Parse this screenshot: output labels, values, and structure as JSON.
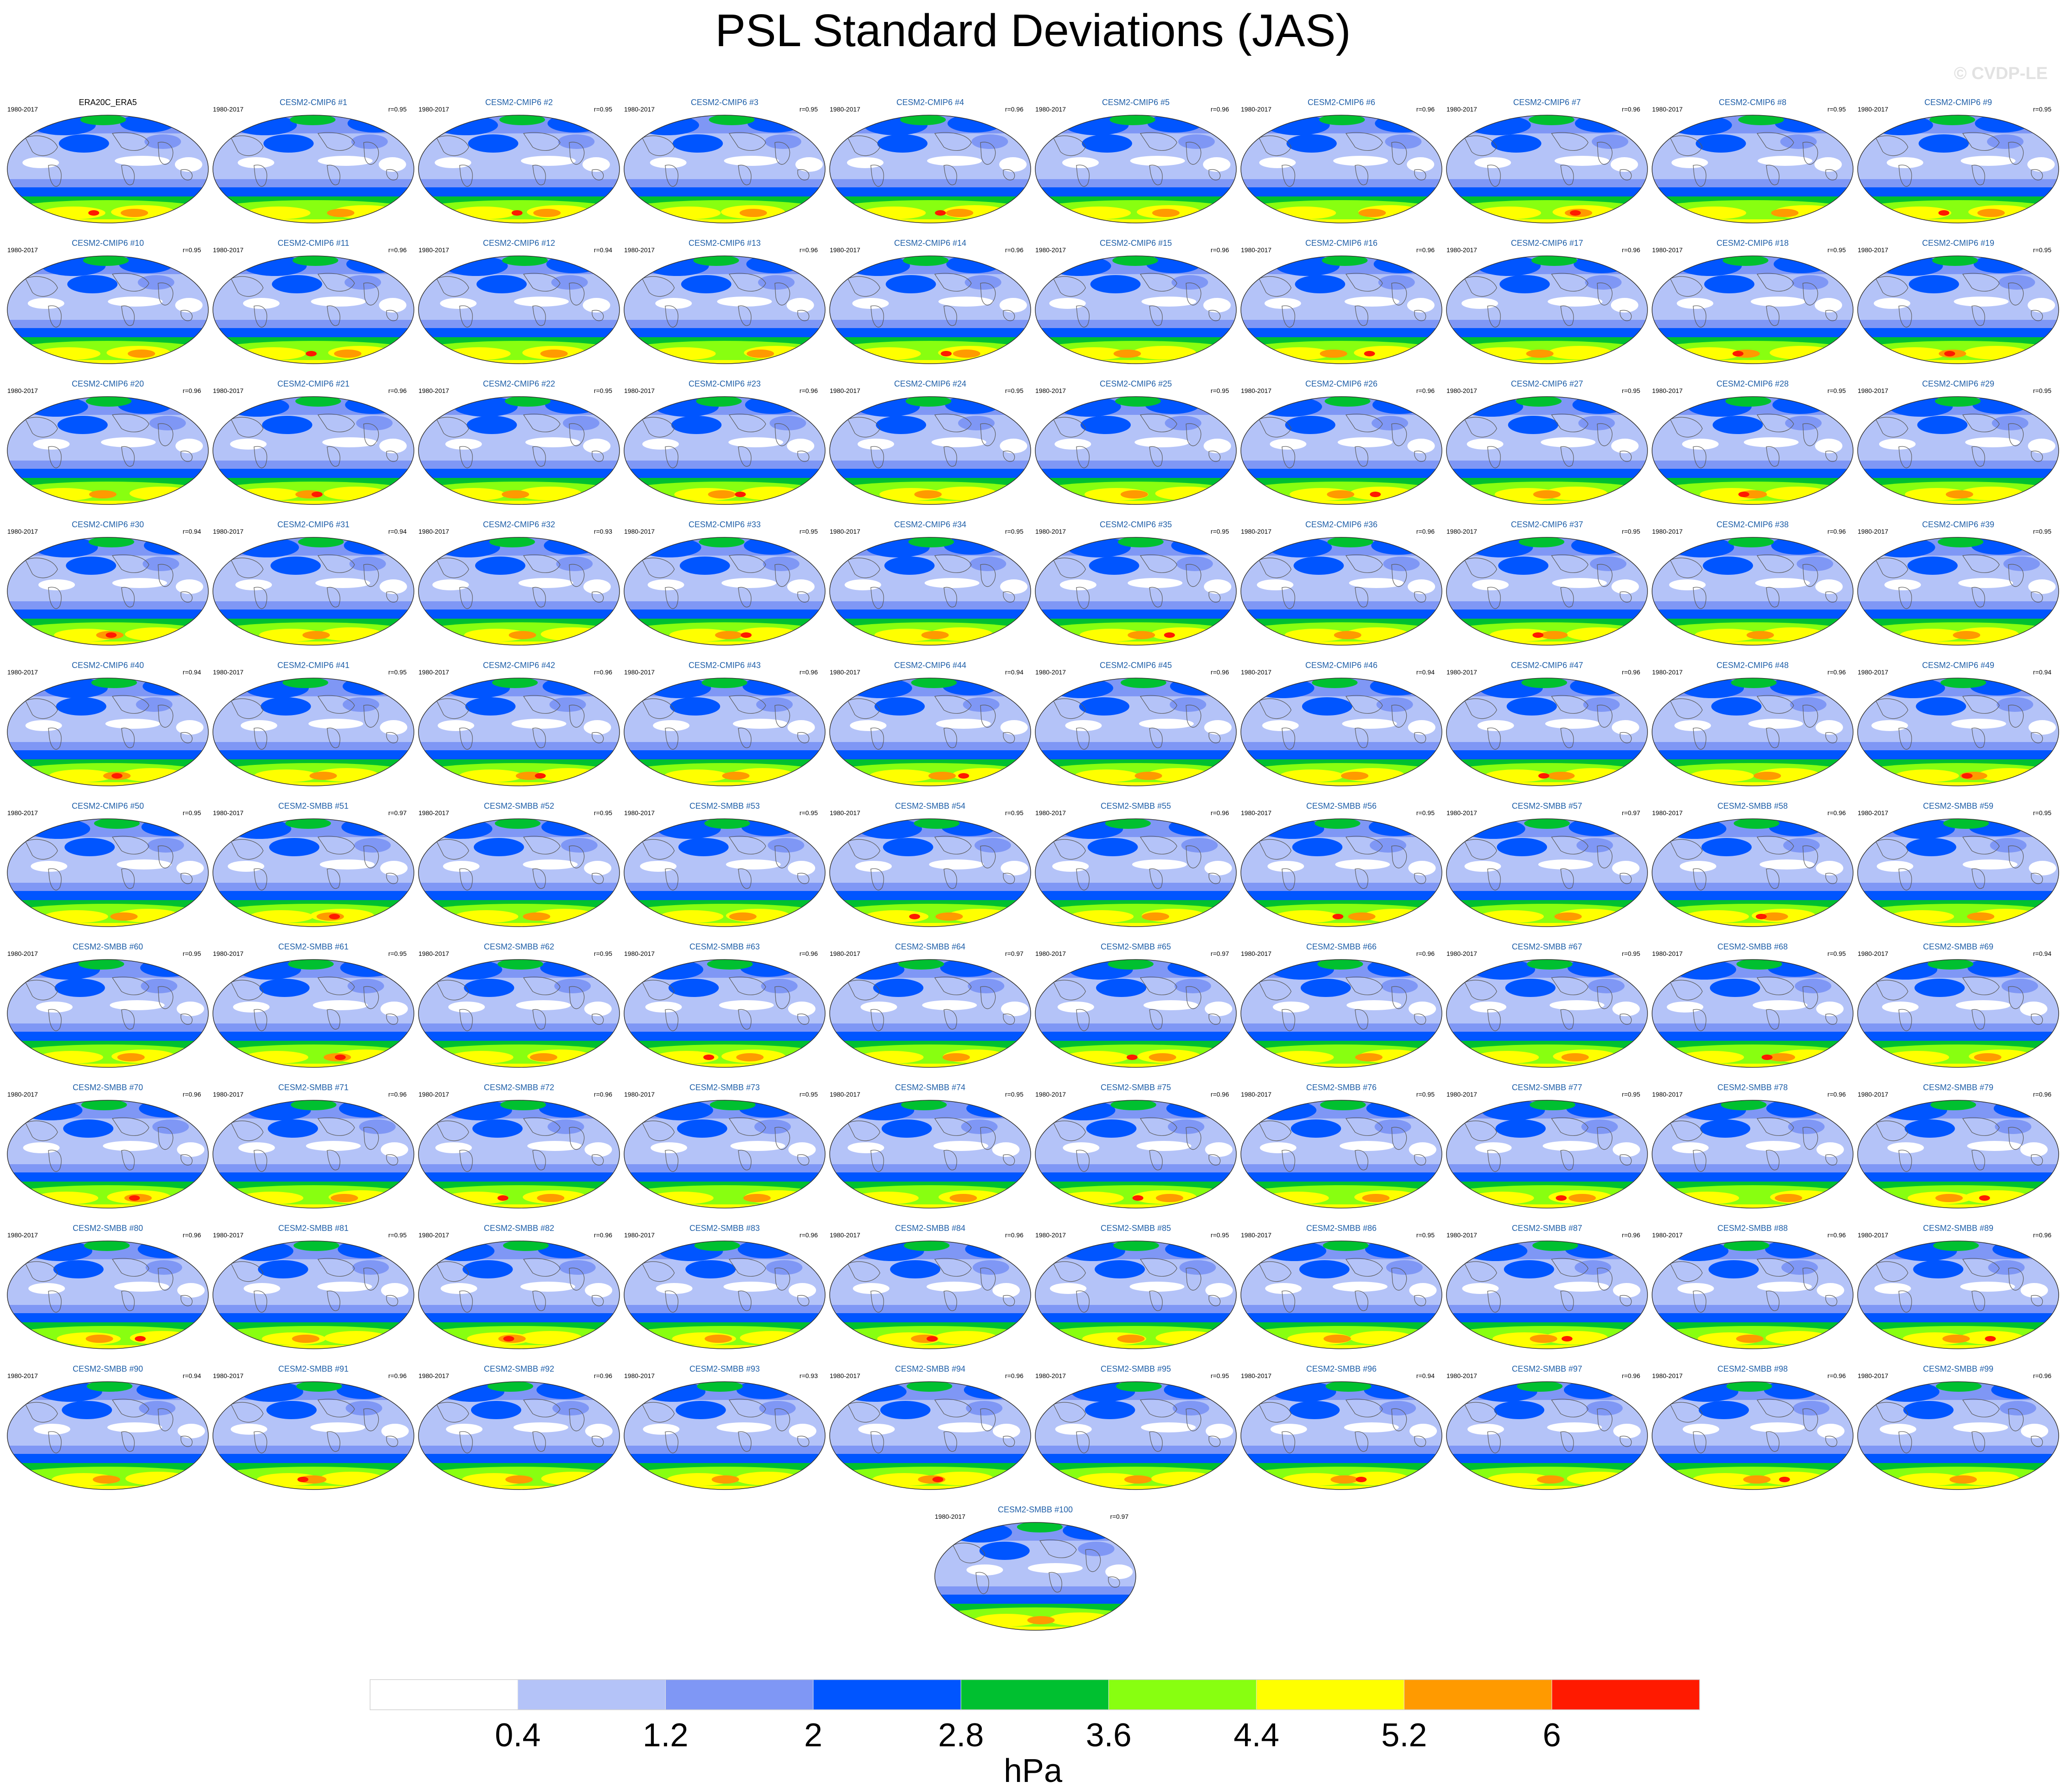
{
  "title": "PSL Standard Deviations (JAS)",
  "watermark": "© CVDP-LE",
  "chart_data": {
    "type": "heatmap",
    "title": "PSL Standard Deviations (JAS)",
    "colorbar": {
      "label": "hPa",
      "ticks": [
        "0.4",
        "1.2",
        "2",
        "2.8",
        "3.6",
        "4.4",
        "5.2",
        "6"
      ],
      "colors": [
        "#ffffff",
        "#b4c3f8",
        "#7f97f5",
        "#0055ff",
        "#00c030",
        "#88ff10",
        "#ffff00",
        "#ff9a00",
        "#ff1a00"
      ]
    },
    "panels": [
      {
        "title": "ERA20C_ERA5",
        "years": "1980-2017",
        "r": "",
        "observation": true
      },
      {
        "title": "CESM2-CMIP6 #1",
        "years": "1980-2017",
        "r": "r=0.95"
      },
      {
        "title": "CESM2-CMIP6 #2",
        "years": "1980-2017",
        "r": "r=0.95"
      },
      {
        "title": "CESM2-CMIP6 #3",
        "years": "1980-2017",
        "r": "r=0.95"
      },
      {
        "title": "CESM2-CMIP6 #4",
        "years": "1980-2017",
        "r": "r=0.96"
      },
      {
        "title": "CESM2-CMIP6 #5",
        "years": "1980-2017",
        "r": "r=0.96"
      },
      {
        "title": "CESM2-CMIP6 #6",
        "years": "1980-2017",
        "r": "r=0.96"
      },
      {
        "title": "CESM2-CMIP6 #7",
        "years": "1980-2017",
        "r": "r=0.96"
      },
      {
        "title": "CESM2-CMIP6 #8",
        "years": "1980-2017",
        "r": "r=0.95"
      },
      {
        "title": "CESM2-CMIP6 #9",
        "years": "1980-2017",
        "r": "r=0.95"
      },
      {
        "title": "CESM2-CMIP6 #10",
        "years": "1980-2017",
        "r": "r=0.95"
      },
      {
        "title": "CESM2-CMIP6 #11",
        "years": "1980-2017",
        "r": "r=0.96"
      },
      {
        "title": "CESM2-CMIP6 #12",
        "years": "1980-2017",
        "r": "r=0.94"
      },
      {
        "title": "CESM2-CMIP6 #13",
        "years": "1980-2017",
        "r": "r=0.96"
      },
      {
        "title": "CESM2-CMIP6 #14",
        "years": "1980-2017",
        "r": "r=0.96"
      },
      {
        "title": "CESM2-CMIP6 #15",
        "years": "1980-2017",
        "r": "r=0.96"
      },
      {
        "title": "CESM2-CMIP6 #16",
        "years": "1980-2017",
        "r": "r=0.96"
      },
      {
        "title": "CESM2-CMIP6 #17",
        "years": "1980-2017",
        "r": "r=0.96"
      },
      {
        "title": "CESM2-CMIP6 #18",
        "years": "1980-2017",
        "r": "r=0.95"
      },
      {
        "title": "CESM2-CMIP6 #19",
        "years": "1980-2017",
        "r": "r=0.95"
      },
      {
        "title": "CESM2-CMIP6 #20",
        "years": "1980-2017",
        "r": "r=0.96"
      },
      {
        "title": "CESM2-CMIP6 #21",
        "years": "1980-2017",
        "r": "r=0.96"
      },
      {
        "title": "CESM2-CMIP6 #22",
        "years": "1980-2017",
        "r": "r=0.95"
      },
      {
        "title": "CESM2-CMIP6 #23",
        "years": "1980-2017",
        "r": "r=0.96"
      },
      {
        "title": "CESM2-CMIP6 #24",
        "years": "1980-2017",
        "r": "r=0.95"
      },
      {
        "title": "CESM2-CMIP6 #25",
        "years": "1980-2017",
        "r": "r=0.95"
      },
      {
        "title": "CESM2-CMIP6 #26",
        "years": "1980-2017",
        "r": "r=0.96"
      },
      {
        "title": "CESM2-CMIP6 #27",
        "years": "1980-2017",
        "r": "r=0.95"
      },
      {
        "title": "CESM2-CMIP6 #28",
        "years": "1980-2017",
        "r": "r=0.95"
      },
      {
        "title": "CESM2-CMIP6 #29",
        "years": "1980-2017",
        "r": "r=0.95"
      },
      {
        "title": "CESM2-CMIP6 #30",
        "years": "1980-2017",
        "r": "r=0.94"
      },
      {
        "title": "CESM2-CMIP6 #31",
        "years": "1980-2017",
        "r": "r=0.94"
      },
      {
        "title": "CESM2-CMIP6 #32",
        "years": "1980-2017",
        "r": "r=0.93"
      },
      {
        "title": "CESM2-CMIP6 #33",
        "years": "1980-2017",
        "r": "r=0.95"
      },
      {
        "title": "CESM2-CMIP6 #34",
        "years": "1980-2017",
        "r": "r=0.95"
      },
      {
        "title": "CESM2-CMIP6 #35",
        "years": "1980-2017",
        "r": "r=0.95"
      },
      {
        "title": "CESM2-CMIP6 #36",
        "years": "1980-2017",
        "r": "r=0.96"
      },
      {
        "title": "CESM2-CMIP6 #37",
        "years": "1980-2017",
        "r": "r=0.95"
      },
      {
        "title": "CESM2-CMIP6 #38",
        "years": "1980-2017",
        "r": "r=0.96"
      },
      {
        "title": "CESM2-CMIP6 #39",
        "years": "1980-2017",
        "r": "r=0.95"
      },
      {
        "title": "CESM2-CMIP6 #40",
        "years": "1980-2017",
        "r": "r=0.94"
      },
      {
        "title": "CESM2-CMIP6 #41",
        "years": "1980-2017",
        "r": "r=0.95"
      },
      {
        "title": "CESM2-CMIP6 #42",
        "years": "1980-2017",
        "r": "r=0.96"
      },
      {
        "title": "CESM2-CMIP6 #43",
        "years": "1980-2017",
        "r": "r=0.96"
      },
      {
        "title": "CESM2-CMIP6 #44",
        "years": "1980-2017",
        "r": "r=0.94"
      },
      {
        "title": "CESM2-CMIP6 #45",
        "years": "1980-2017",
        "r": "r=0.96"
      },
      {
        "title": "CESM2-CMIP6 #46",
        "years": "1980-2017",
        "r": "r=0.94"
      },
      {
        "title": "CESM2-CMIP6 #47",
        "years": "1980-2017",
        "r": "r=0.96"
      },
      {
        "title": "CESM2-CMIP6 #48",
        "years": "1980-2017",
        "r": "r=0.96"
      },
      {
        "title": "CESM2-CMIP6 #49",
        "years": "1980-2017",
        "r": "r=0.94"
      },
      {
        "title": "CESM2-CMIP6 #50",
        "years": "1980-2017",
        "r": "r=0.95"
      },
      {
        "title": "CESM2-SMBB #51",
        "years": "1980-2017",
        "r": "r=0.97"
      },
      {
        "title": "CESM2-SMBB #52",
        "years": "1980-2017",
        "r": "r=0.95"
      },
      {
        "title": "CESM2-SMBB #53",
        "years": "1980-2017",
        "r": "r=0.95"
      },
      {
        "title": "CESM2-SMBB #54",
        "years": "1980-2017",
        "r": "r=0.95"
      },
      {
        "title": "CESM2-SMBB #55",
        "years": "1980-2017",
        "r": "r=0.96"
      },
      {
        "title": "CESM2-SMBB #56",
        "years": "1980-2017",
        "r": "r=0.95"
      },
      {
        "title": "CESM2-SMBB #57",
        "years": "1980-2017",
        "r": "r=0.97"
      },
      {
        "title": "CESM2-SMBB #58",
        "years": "1980-2017",
        "r": "r=0.96"
      },
      {
        "title": "CESM2-SMBB #59",
        "years": "1980-2017",
        "r": "r=0.95"
      },
      {
        "title": "CESM2-SMBB #60",
        "years": "1980-2017",
        "r": "r=0.95"
      },
      {
        "title": "CESM2-SMBB #61",
        "years": "1980-2017",
        "r": "r=0.95"
      },
      {
        "title": "CESM2-SMBB #62",
        "years": "1980-2017",
        "r": "r=0.95"
      },
      {
        "title": "CESM2-SMBB #63",
        "years": "1980-2017",
        "r": "r=0.96"
      },
      {
        "title": "CESM2-SMBB #64",
        "years": "1980-2017",
        "r": "r=0.97"
      },
      {
        "title": "CESM2-SMBB #65",
        "years": "1980-2017",
        "r": "r=0.97"
      },
      {
        "title": "CESM2-SMBB #66",
        "years": "1980-2017",
        "r": "r=0.96"
      },
      {
        "title": "CESM2-SMBB #67",
        "years": "1980-2017",
        "r": "r=0.95"
      },
      {
        "title": "CESM2-SMBB #68",
        "years": "1980-2017",
        "r": "r=0.95"
      },
      {
        "title": "CESM2-SMBB #69",
        "years": "1980-2017",
        "r": "r=0.94"
      },
      {
        "title": "CESM2-SMBB #70",
        "years": "1980-2017",
        "r": "r=0.96"
      },
      {
        "title": "CESM2-SMBB #71",
        "years": "1980-2017",
        "r": "r=0.96"
      },
      {
        "title": "CESM2-SMBB #72",
        "years": "1980-2017",
        "r": "r=0.96"
      },
      {
        "title": "CESM2-SMBB #73",
        "years": "1980-2017",
        "r": "r=0.95"
      },
      {
        "title": "CESM2-SMBB #74",
        "years": "1980-2017",
        "r": "r=0.95"
      },
      {
        "title": "CESM2-SMBB #75",
        "years": "1980-2017",
        "r": "r=0.96"
      },
      {
        "title": "CESM2-SMBB #76",
        "years": "1980-2017",
        "r": "r=0.95"
      },
      {
        "title": "CESM2-SMBB #77",
        "years": "1980-2017",
        "r": "r=0.95"
      },
      {
        "title": "CESM2-SMBB #78",
        "years": "1980-2017",
        "r": "r=0.96"
      },
      {
        "title": "CESM2-SMBB #79",
        "years": "1980-2017",
        "r": "r=0.96"
      },
      {
        "title": "CESM2-SMBB #80",
        "years": "1980-2017",
        "r": "r=0.96"
      },
      {
        "title": "CESM2-SMBB #81",
        "years": "1980-2017",
        "r": "r=0.95"
      },
      {
        "title": "CESM2-SMBB #82",
        "years": "1980-2017",
        "r": "r=0.96"
      },
      {
        "title": "CESM2-SMBB #83",
        "years": "1980-2017",
        "r": "r=0.96"
      },
      {
        "title": "CESM2-SMBB #84",
        "years": "1980-2017",
        "r": "r=0.96"
      },
      {
        "title": "CESM2-SMBB #85",
        "years": "1980-2017",
        "r": "r=0.95"
      },
      {
        "title": "CESM2-SMBB #86",
        "years": "1980-2017",
        "r": "r=0.95"
      },
      {
        "title": "CESM2-SMBB #87",
        "years": "1980-2017",
        "r": "r=0.96"
      },
      {
        "title": "CESM2-SMBB #88",
        "years": "1980-2017",
        "r": "r=0.96"
      },
      {
        "title": "CESM2-SMBB #89",
        "years": "1980-2017",
        "r": "r=0.96"
      },
      {
        "title": "CESM2-SMBB #90",
        "years": "1980-2017",
        "r": "r=0.94"
      },
      {
        "title": "CESM2-SMBB #91",
        "years": "1980-2017",
        "r": "r=0.96"
      },
      {
        "title": "CESM2-SMBB #92",
        "years": "1980-2017",
        "r": "r=0.96"
      },
      {
        "title": "CESM2-SMBB #93",
        "years": "1980-2017",
        "r": "r=0.93"
      },
      {
        "title": "CESM2-SMBB #94",
        "years": "1980-2017",
        "r": "r=0.96"
      },
      {
        "title": "CESM2-SMBB #95",
        "years": "1980-2017",
        "r": "r=0.95"
      },
      {
        "title": "CESM2-SMBB #96",
        "years": "1980-2017",
        "r": "r=0.94"
      },
      {
        "title": "CESM2-SMBB #97",
        "years": "1980-2017",
        "r": "r=0.96"
      },
      {
        "title": "CESM2-SMBB #98",
        "years": "1980-2017",
        "r": "r=0.96"
      },
      {
        "title": "CESM2-SMBB #99",
        "years": "1980-2017",
        "r": "r=0.96"
      },
      {
        "title": "CESM2-SMBB #100",
        "years": "1980-2017",
        "r": "r=0.97"
      }
    ]
  }
}
